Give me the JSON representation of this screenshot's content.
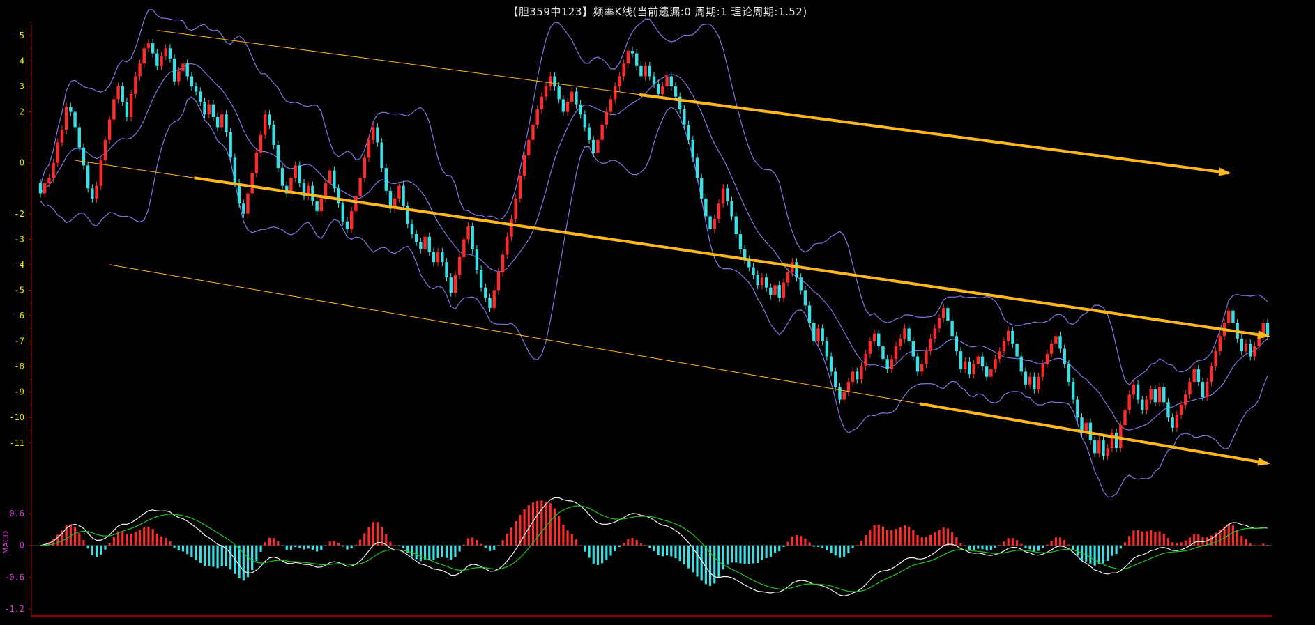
{
  "title": "【胆359中123】频率K线(当前遗漏:0 周期:1 理论周期:1.52)",
  "colors": {
    "up": "#ff2a2a",
    "down": "#39e0e6",
    "band": "#7f77e6",
    "trend": "#ffb81c",
    "axis": "#c00000",
    "tick_label_main": "#e8e800",
    "tick_label_macd": "#d040d0",
    "dif": "#f2f2f2",
    "dea": "#22c422"
  },
  "chart_data": [
    {
      "type": "candlestick",
      "title": "【胆359中123】频率K线(当前遗漏:0 周期:1 理论周期:1.52)",
      "yticks": [
        5,
        4,
        3,
        2,
        0,
        -2,
        -3,
        -4,
        -5,
        -6,
        -7,
        -8,
        -9,
        -10,
        -11
      ],
      "ylim": [
        -11.8,
        5.3
      ],
      "close": [
        -1.2,
        -0.8,
        -0.6,
        0.0,
        0.8,
        1.3,
        2.2,
        2.0,
        1.4,
        0.6,
        -0.1,
        -1.0,
        -1.4,
        -0.9,
        0.1,
        0.9,
        1.7,
        2.5,
        3.0,
        2.4,
        1.8,
        2.7,
        3.4,
        3.9,
        4.5,
        4.7,
        4.3,
        3.8,
        4.2,
        4.5,
        4.1,
        3.2,
        3.6,
        3.9,
        3.4,
        3.0,
        2.8,
        2.4,
        1.9,
        2.3,
        1.8,
        1.4,
        1.9,
        1.2,
        0.2,
        -0.8,
        -1.6,
        -2.0,
        -1.2,
        -0.4,
        0.4,
        1.1,
        1.9,
        1.5,
        0.7,
        -0.2,
        -0.9,
        -1.2,
        -0.6,
        -0.1,
        -0.8,
        -1.3,
        -0.9,
        -1.5,
        -1.9,
        -1.4,
        -0.8,
        -0.3,
        -1.0,
        -1.6,
        -2.3,
        -2.6,
        -1.9,
        -1.3,
        -0.6,
        0.2,
        0.9,
        1.4,
        0.8,
        -0.2,
        -1.1,
        -1.8,
        -1.4,
        -0.9,
        -1.7,
        -2.4,
        -2.8,
        -3.1,
        -3.4,
        -2.9,
        -3.5,
        -3.9,
        -3.5,
        -3.9,
        -4.5,
        -5.1,
        -4.4,
        -3.7,
        -3.0,
        -2.5,
        -3.4,
        -4.2,
        -4.9,
        -5.3,
        -5.7,
        -5.0,
        -4.3,
        -3.6,
        -2.9,
        -2.2,
        -1.4,
        -0.5,
        0.3,
        0.9,
        1.5,
        2.1,
        2.6,
        3.0,
        3.4,
        3.0,
        2.5,
        2.0,
        2.4,
        2.8,
        2.3,
        1.9,
        1.4,
        0.9,
        0.4,
        0.9,
        1.5,
        2.0,
        2.5,
        3.0,
        3.4,
        3.9,
        4.4,
        4.3,
        3.8,
        3.4,
        3.8,
        3.4,
        3.1,
        2.7,
        3.0,
        3.4,
        3.0,
        2.6,
        2.1,
        1.5,
        0.9,
        0.2,
        -0.6,
        -1.4,
        -2.1,
        -2.6,
        -2.2,
        -1.6,
        -1.0,
        -1.5,
        -2.1,
        -2.8,
        -3.4,
        -3.8,
        -4.1,
        -4.4,
        -4.8,
        -4.5,
        -4.9,
        -5.2,
        -4.8,
        -5.3,
        -4.7,
        -4.3,
        -3.9,
        -4.5,
        -5.0,
        -5.6,
        -6.3,
        -7.0,
        -6.5,
        -7.0,
        -7.6,
        -8.2,
        -8.8,
        -9.3,
        -9.0,
        -8.6,
        -8.2,
        -8.5,
        -8.0,
        -7.5,
        -7.0,
        -6.7,
        -7.2,
        -7.7,
        -8.1,
        -7.7,
        -7.2,
        -6.9,
        -6.5,
        -7.0,
        -7.6,
        -8.2,
        -7.9,
        -7.4,
        -6.9,
        -6.5,
        -6.1,
        -5.7,
        -6.2,
        -6.8,
        -7.4,
        -8.1,
        -7.8,
        -8.3,
        -7.9,
        -7.6,
        -8.0,
        -8.4,
        -8.1,
        -7.7,
        -7.4,
        -7.0,
        -6.6,
        -7.1,
        -7.6,
        -8.2,
        -8.7,
        -8.4,
        -8.9,
        -8.4,
        -7.9,
        -7.5,
        -7.1,
        -6.8,
        -7.3,
        -7.9,
        -8.6,
        -9.3,
        -10.0,
        -10.6,
        -10.2,
        -10.9,
        -11.4,
        -10.9,
        -11.5,
        -11.2,
        -10.6,
        -11.2,
        -10.3,
        -9.7,
        -9.1,
        -8.7,
        -9.3,
        -9.7,
        -9.3,
        -8.9,
        -9.4,
        -8.8,
        -9.4,
        -10.0,
        -10.4,
        -9.9,
        -9.5,
        -9.1,
        -8.6,
        -8.1,
        -8.6,
        -9.2,
        -8.6,
        -8.0,
        -7.4,
        -6.8,
        -6.3,
        -5.8,
        -6.3,
        -6.9,
        -7.4,
        -7.1,
        -7.6,
        -7.2,
        -6.8,
        -6.3,
        -6.8
      ],
      "macd": {
        "yticks": [
          0.6,
          0,
          -0.6,
          -1.2
        ],
        "ylim": [
          -1.25,
          0.85
        ],
        "series": [
          "DIF",
          "DEA"
        ]
      }
    }
  ],
  "axis_label_macd": "MACD"
}
